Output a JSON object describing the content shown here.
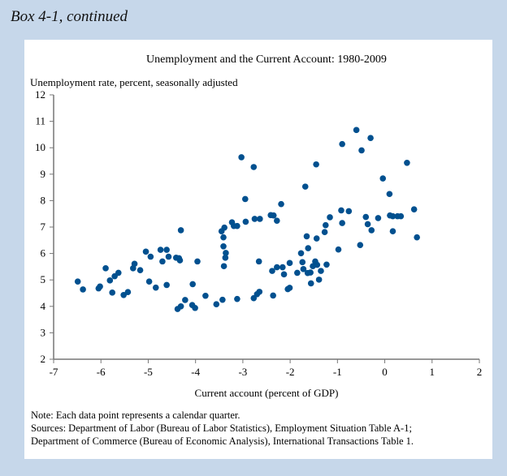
{
  "box_title": "Box 4-1, continued",
  "chart_data": {
    "type": "scatter",
    "title": "Unemployment and the Current Account: 1980-2009",
    "ylabel": "Unemployment rate, percent, seasonally adjusted",
    "xlabel": "Current account (percent of GDP)",
    "xlim": [
      -7,
      2
    ],
    "ylim": [
      2,
      12
    ],
    "xticks": [
      "-7",
      "-6",
      "-5",
      "-4",
      "-3",
      "-2",
      "-1",
      "0",
      "1",
      "2"
    ],
    "yticks": [
      "2",
      "3",
      "4",
      "5",
      "6",
      "7",
      "8",
      "9",
      "10",
      "11",
      "12"
    ],
    "grid": false,
    "color": "#00508f",
    "points": [
      [
        -6.49,
        4.94
      ],
      [
        -6.38,
        4.64
      ],
      [
        -6.05,
        4.68
      ],
      [
        -6.02,
        4.75
      ],
      [
        -5.9,
        5.44
      ],
      [
        -5.81,
        4.98
      ],
      [
        -5.76,
        4.52
      ],
      [
        -5.71,
        5.14
      ],
      [
        -5.63,
        5.27
      ],
      [
        -5.52,
        4.43
      ],
      [
        -5.43,
        4.54
      ],
      [
        -5.32,
        5.44
      ],
      [
        -5.29,
        5.61
      ],
      [
        -5.17,
        5.37
      ],
      [
        -5.05,
        6.07
      ],
      [
        -4.95,
        5.88
      ],
      [
        -4.98,
        4.94
      ],
      [
        -4.84,
        4.71
      ],
      [
        -4.74,
        6.14
      ],
      [
        -4.61,
        6.14
      ],
      [
        -4.7,
        5.7
      ],
      [
        -4.57,
        5.88
      ],
      [
        -4.61,
        4.81
      ],
      [
        -4.41,
        5.84
      ],
      [
        -4.35,
        5.82
      ],
      [
        -4.33,
        5.74
      ],
      [
        -4.31,
        6.88
      ],
      [
        -4.06,
        4.84
      ],
      [
        -3.96,
        5.7
      ],
      [
        -4.22,
        4.24
      ],
      [
        -4.38,
        3.9
      ],
      [
        -4.31,
        4.0
      ],
      [
        -4.07,
        4.05
      ],
      [
        -4.01,
        3.94
      ],
      [
        -3.79,
        4.4
      ],
      [
        -3.03,
        9.64
      ],
      [
        -2.77,
        9.27
      ],
      [
        -1.45,
        9.37
      ],
      [
        -1.68,
        8.53
      ],
      [
        -2.95,
        8.06
      ],
      [
        -2.19,
        7.87
      ],
      [
        -0.92,
        7.63
      ],
      [
        -0.76,
        7.6
      ],
      [
        -1.16,
        7.37
      ],
      [
        -1.25,
        7.07
      ],
      [
        -0.9,
        7.15
      ],
      [
        -1.27,
        6.81
      ],
      [
        -1.65,
        6.65
      ],
      [
        -1.44,
        6.57
      ],
      [
        -3.23,
        7.18
      ],
      [
        -2.94,
        7.2
      ],
      [
        -2.75,
        7.31
      ],
      [
        -2.64,
        7.31
      ],
      [
        -2.41,
        7.45
      ],
      [
        -2.35,
        7.44
      ],
      [
        -2.28,
        7.24
      ],
      [
        -3.19,
        7.04
      ],
      [
        -3.12,
        7.04
      ],
      [
        -3.39,
        6.98
      ],
      [
        -3.45,
        6.84
      ],
      [
        -3.41,
        6.61
      ],
      [
        -3.41,
        6.27
      ],
      [
        -3.36,
        6.02
      ],
      [
        -3.37,
        5.84
      ],
      [
        -3.4,
        5.52
      ],
      [
        -2.66,
        5.7
      ],
      [
        -1.62,
        6.2
      ],
      [
        -1.77,
        6.01
      ],
      [
        -0.98,
        6.15
      ],
      [
        -0.52,
        6.32
      ],
      [
        -2.01,
        5.64
      ],
      [
        -2.38,
        5.34
      ],
      [
        -2.28,
        5.48
      ],
      [
        -2.16,
        5.48
      ],
      [
        -2.13,
        5.21
      ],
      [
        -1.74,
        5.67
      ],
      [
        -1.85,
        5.27
      ],
      [
        -1.72,
        5.41
      ],
      [
        -1.63,
        5.26
      ],
      [
        -1.47,
        5.7
      ],
      [
        -1.43,
        5.57
      ],
      [
        -1.52,
        5.52
      ],
      [
        -1.57,
        5.28
      ],
      [
        -1.35,
        5.34
      ],
      [
        -1.23,
        5.58
      ],
      [
        -1.56,
        4.87
      ],
      [
        -1.39,
        5.01
      ],
      [
        -3.56,
        4.08
      ],
      [
        -3.43,
        4.25
      ],
      [
        -3.12,
        4.28
      ],
      [
        -2.77,
        4.31
      ],
      [
        -2.7,
        4.46
      ],
      [
        -2.65,
        4.55
      ],
      [
        -2.36,
        4.41
      ],
      [
        -2.05,
        4.65
      ],
      [
        -2.01,
        4.7
      ],
      [
        -0.6,
        10.67
      ],
      [
        -0.3,
        10.37
      ],
      [
        -0.9,
        10.14
      ],
      [
        -0.49,
        9.9
      ],
      [
        0.47,
        9.43
      ],
      [
        -0.04,
        8.84
      ],
      [
        0.1,
        8.25
      ],
      [
        -0.4,
        7.38
      ],
      [
        -0.14,
        7.34
      ],
      [
        0.11,
        7.44
      ],
      [
        0.17,
        7.41
      ],
      [
        0.27,
        7.41
      ],
      [
        0.34,
        7.41
      ],
      [
        0.62,
        7.67
      ],
      [
        -0.36,
        7.11
      ],
      [
        -0.28,
        6.88
      ],
      [
        0.17,
        6.84
      ],
      [
        0.68,
        6.61
      ]
    ]
  },
  "notes": {
    "note": "Note:  Each data point represents a calendar quarter.",
    "sources_1": "Sources:  Department of Labor (Bureau of Labor Statistics), Employment Situation Table A-1;",
    "sources_2": "Department of Commerce (Bureau of Economic Analysis),  International Transactions Table 1."
  }
}
